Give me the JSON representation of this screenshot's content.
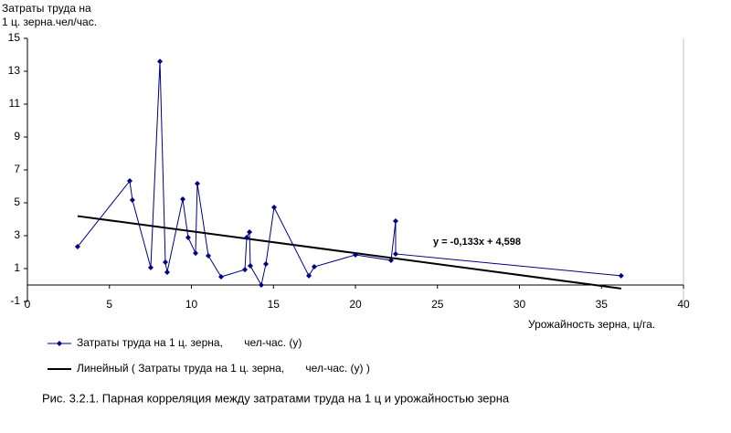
{
  "chart_data": {
    "type": "line",
    "y_label": [
      "Затраты труда на",
      "1 ц. зерна.чел/час."
    ],
    "x_label": "Урожайность зерна, ц/га.",
    "caption": "Рис. 3.2.1. Парная корреляция между затратами труда на 1 ц и урожайностью зерна",
    "x": [
      3.06,
      6.24,
      6.4,
      7.52,
      8.08,
      8.41,
      8.52,
      9.47,
      9.8,
      10.25,
      10.36,
      11.03,
      11.81,
      13.26,
      13.37,
      13.54,
      13.59,
      14.26,
      14.54,
      15.04,
      17.16,
      17.49,
      20.0,
      22.17,
      22.45,
      22.45,
      36.2
    ],
    "series": [
      {
        "name": "Затраты труда на 1 ц. зерна,       чел-час. (у)",
        "color": "#000080",
        "values": [
          2.33,
          6.33,
          5.17,
          1.06,
          13.6,
          1.39,
          0.78,
          5.22,
          2.89,
          1.94,
          6.17,
          1.78,
          0.5,
          0.94,
          2.89,
          3.22,
          1.17,
          0,
          1.28,
          4.72,
          0.56,
          1.11,
          1.83,
          1.5,
          3.89,
          1.89,
          0.56
        ]
      }
    ],
    "trendline": {
      "name": "Линейный ( Затраты труда на 1 ц. зерна,       чел-час. (у) )",
      "equation": "y = -0,133x + 4,598",
      "slope": -0.133,
      "intercept": 4.598,
      "color": "#000000"
    },
    "xlim": [
      0,
      40
    ],
    "xticks": [
      0,
      5,
      10,
      15,
      20,
      25,
      30,
      35,
      40
    ],
    "ylim": [
      -1,
      15
    ],
    "yticks": [
      -1,
      1,
      3,
      5,
      7,
      9,
      11,
      13,
      15
    ]
  }
}
